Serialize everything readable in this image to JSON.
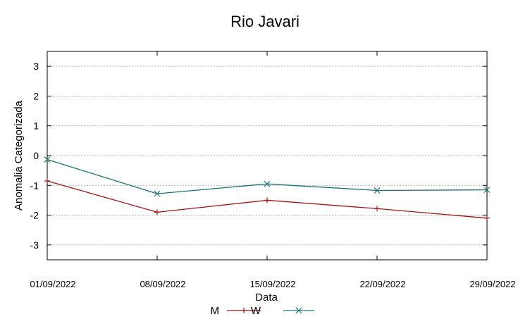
{
  "chart_data": {
    "type": "line",
    "title": "Rio Javari",
    "xlabel": "Data",
    "ylabel": "Anomalia Categorizada",
    "categories": [
      "01/09/2022",
      "08/09/2022",
      "15/09/2022",
      "22/09/2022",
      "29/09/2022"
    ],
    "ylim": [
      -3.5,
      3.5
    ],
    "yticks": [
      "3",
      "2",
      "1",
      "0",
      "-1",
      "-2",
      "-3"
    ],
    "ytick_values": [
      3,
      2,
      1,
      0,
      -1,
      -2,
      -3
    ],
    "grid": true,
    "legend_position": "bottom-center",
    "series": [
      {
        "name": "M",
        "color": "#a31515",
        "marker": "plus",
        "values": [
          -0.85,
          -1.9,
          -1.5,
          -1.78,
          -2.1
        ]
      },
      {
        "name": "W",
        "color": "#1c7373",
        "marker": "x",
        "values": [
          -0.13,
          -1.28,
          -0.95,
          -1.17,
          -1.15
        ]
      }
    ]
  }
}
